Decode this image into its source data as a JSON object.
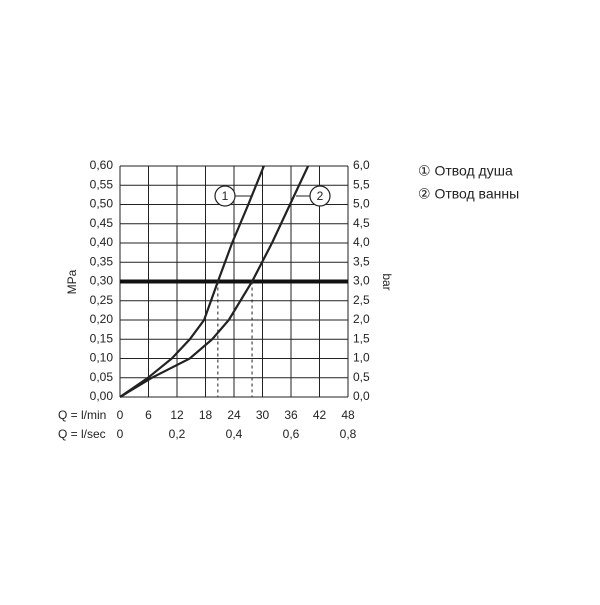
{
  "chart_data": {
    "type": "line",
    "ylabel": "MPa",
    "y2label": "bar",
    "xlabel": "Q = l/min",
    "x2label": "Q = l/sec",
    "xlim": [
      0,
      48
    ],
    "xticks": [
      0,
      6,
      12,
      18,
      24,
      30,
      36,
      42,
      48
    ],
    "x2lim": [
      0,
      0.8
    ],
    "x2ticks": [
      0,
      {
        "value": 0.2,
        "label": "0,2"
      },
      {
        "value": 0.4,
        "label": "0,4"
      },
      {
        "value": 0.6,
        "label": "0,6"
      },
      {
        "value": 0.8,
        "label": "0,8"
      }
    ],
    "ylim": [
      0,
      0.6
    ],
    "yticks": [
      {
        "value": 0,
        "label": "0,00"
      },
      {
        "value": 0.05,
        "label": "0,05"
      },
      {
        "value": 0.1,
        "label": "0,10"
      },
      {
        "value": 0.15,
        "label": "0,15"
      },
      {
        "value": 0.2,
        "label": "0,20"
      },
      {
        "value": 0.25,
        "label": "0,25"
      },
      {
        "value": 0.3,
        "label": "0,30"
      },
      {
        "value": 0.35,
        "label": "0,35"
      },
      {
        "value": 0.4,
        "label": "0,40"
      },
      {
        "value": 0.45,
        "label": "0,45"
      },
      {
        "value": 0.5,
        "label": "0,50"
      },
      {
        "value": 0.55,
        "label": "0,55"
      },
      {
        "value": 0.6,
        "label": "0,60"
      }
    ],
    "y2lim": [
      0,
      6
    ],
    "y2ticks": [
      {
        "value": 0,
        "label": "0,0"
      },
      {
        "value": 0.5,
        "label": "0,5"
      },
      {
        "value": 1,
        "label": "1,0"
      },
      {
        "value": 1.5,
        "label": "1,5"
      },
      {
        "value": 2,
        "label": "2,0"
      },
      {
        "value": 2.5,
        "label": "2,5"
      },
      {
        "value": 3,
        "label": "3,0"
      },
      {
        "value": 3.5,
        "label": "3,5"
      },
      {
        "value": 4,
        "label": "4,0"
      },
      {
        "value": 4.5,
        "label": "4,5"
      },
      {
        "value": 5,
        "label": "5,0"
      },
      {
        "value": 5.5,
        "label": "5,5"
      },
      {
        "value": 6,
        "label": "6,0"
      }
    ],
    "grid": true,
    "reference_y": 0.3,
    "crossings": [
      20.6,
      27.8
    ],
    "series": [
      {
        "name": "① Отвод душа",
        "label": "1",
        "color": "#222222",
        "x": [
          0,
          5.9,
          10.9,
          14.7,
          17.7,
          20.6,
          23.6,
          27,
          30.3
        ],
        "values": [
          0,
          0.05,
          0.1,
          0.15,
          0.2,
          0.3,
          0.4,
          0.5,
          0.6
        ]
      },
      {
        "name": "② Отвод ванны",
        "label": "2",
        "color": "#222222",
        "x": [
          0,
          6.7,
          14.7,
          19.4,
          22.9,
          27.8,
          32,
          35.8,
          39.6
        ],
        "values": [
          0,
          0.05,
          0.1,
          0.15,
          0.2,
          0.3,
          0.4,
          0.5,
          0.6
        ]
      }
    ]
  }
}
